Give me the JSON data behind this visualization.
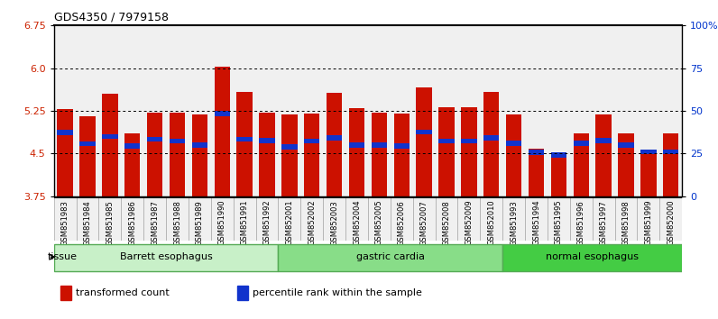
{
  "title": "GDS4350 / 7979158",
  "samples": [
    "GSM851983",
    "GSM851984",
    "GSM851985",
    "GSM851986",
    "GSM851987",
    "GSM851988",
    "GSM851989",
    "GSM851990",
    "GSM851991",
    "GSM851992",
    "GSM852001",
    "GSM852002",
    "GSM852003",
    "GSM852004",
    "GSM852005",
    "GSM852006",
    "GSM852007",
    "GSM852008",
    "GSM852009",
    "GSM852010",
    "GSM851993",
    "GSM851994",
    "GSM851995",
    "GSM851996",
    "GSM851997",
    "GSM851998",
    "GSM851999",
    "GSM852000"
  ],
  "red_values": [
    5.28,
    5.15,
    5.55,
    4.85,
    5.22,
    5.22,
    5.18,
    6.02,
    5.58,
    5.22,
    5.18,
    5.21,
    5.57,
    5.29,
    5.22,
    5.21,
    5.67,
    5.32,
    5.32,
    5.58,
    5.18,
    4.58,
    4.48,
    4.85,
    5.18,
    4.85,
    4.55,
    4.85
  ],
  "blue_values": [
    4.87,
    4.67,
    4.8,
    4.63,
    4.75,
    4.72,
    4.65,
    5.2,
    4.75,
    4.73,
    4.62,
    4.72,
    4.78,
    4.65,
    4.65,
    4.63,
    4.88,
    4.72,
    4.72,
    4.78,
    4.68,
    4.52,
    4.47,
    4.68,
    4.73,
    4.65,
    4.53,
    4.53
  ],
  "groups": [
    {
      "label": "Barrett esophagus",
      "start": 0,
      "end": 10,
      "color": "#c8f0c8"
    },
    {
      "label": "gastric cardia",
      "start": 10,
      "end": 20,
      "color": "#88dd88"
    },
    {
      "label": "normal esophagus",
      "start": 20,
      "end": 28,
      "color": "#44cc44"
    }
  ],
  "ymin": 3.75,
  "ymax": 6.75,
  "yticks_left": [
    3.75,
    4.5,
    5.25,
    6.0,
    6.75
  ],
  "yticks_right_vals": [
    3.75,
    4.5,
    5.25,
    6.0,
    6.75
  ],
  "yticks_right_labels": [
    "0",
    "25",
    "50",
    "75",
    "100%"
  ],
  "gridlines": [
    4.5,
    5.25,
    6.0
  ],
  "bar_color": "#cc1100",
  "blue_color": "#1133cc",
  "bg_color": "#f0f0f0",
  "legend": [
    {
      "color": "#cc1100",
      "label": "transformed count"
    },
    {
      "color": "#1133cc",
      "label": "percentile rank within the sample"
    }
  ]
}
